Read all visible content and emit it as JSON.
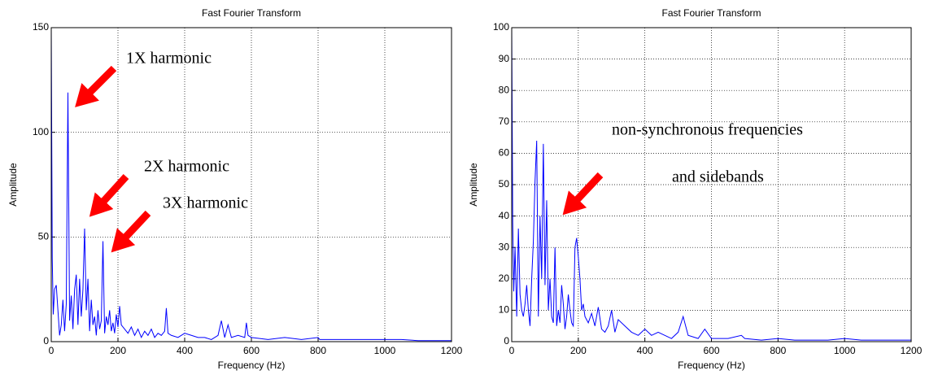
{
  "chart_data": [
    {
      "type": "line",
      "title": "Fast Fourier Transform",
      "xlabel": "Frequency (Hz)",
      "ylabel": "Amplitude",
      "x": [
        0,
        3,
        6,
        10,
        15,
        20,
        25,
        30,
        35,
        40,
        45,
        50,
        55,
        60,
        65,
        70,
        75,
        80,
        85,
        90,
        95,
        100,
        105,
        110,
        115,
        120,
        125,
        130,
        135,
        140,
        145,
        150,
        155,
        160,
        165,
        170,
        175,
        180,
        185,
        190,
        195,
        200,
        205,
        210,
        220,
        230,
        240,
        250,
        260,
        270,
        280,
        290,
        300,
        310,
        320,
        330,
        340,
        345,
        350,
        360,
        380,
        400,
        420,
        440,
        460,
        480,
        500,
        510,
        520,
        530,
        540,
        560,
        580,
        585,
        590,
        600,
        650,
        700,
        750,
        800,
        805,
        850,
        900,
        950,
        1000,
        1050,
        1100,
        1150,
        1200
      ],
      "series": [
        {
          "color": "#0000ff",
          "values": [
            150,
            40,
            13,
            25,
            27,
            15,
            3,
            8,
            20,
            5,
            18,
            119,
            10,
            22,
            6,
            25,
            32,
            8,
            30,
            12,
            25,
            54,
            15,
            30,
            5,
            20,
            8,
            12,
            3,
            15,
            6,
            10,
            48,
            4,
            12,
            8,
            15,
            5,
            9,
            4,
            13,
            7,
            17,
            8,
            6,
            4,
            7,
            3,
            6,
            2,
            5,
            3,
            6,
            2,
            4,
            3,
            5,
            16,
            4,
            3,
            2,
            4,
            3,
            2,
            2,
            1,
            3,
            10,
            2,
            8,
            2,
            3,
            2,
            9,
            3,
            2,
            1,
            2,
            1,
            2,
            1,
            1,
            1,
            1,
            1,
            1,
            0.5,
            0.5,
            0.5
          ]
        }
      ],
      "xlim": [
        0,
        1200
      ],
      "xticks": [
        0,
        200,
        400,
        600,
        800,
        1000,
        1200
      ],
      "ylim": [
        0,
        150
      ],
      "yticks": [
        0,
        50,
        100,
        150
      ],
      "grid": true,
      "annotations": [
        "1X harmonic",
        "2X harmonic",
        "3X harmonic"
      ]
    },
    {
      "type": "line",
      "title": "Fast Fourier Transform",
      "xlabel": "Frequency (Hz)",
      "ylabel": "Amplitude",
      "x": [
        0,
        3,
        6,
        10,
        15,
        20,
        25,
        30,
        35,
        40,
        45,
        50,
        55,
        60,
        65,
        70,
        75,
        80,
        85,
        90,
        95,
        100,
        105,
        110,
        115,
        120,
        125,
        130,
        135,
        140,
        145,
        150,
        155,
        160,
        165,
        170,
        175,
        180,
        185,
        190,
        195,
        200,
        205,
        210,
        215,
        220,
        230,
        240,
        250,
        260,
        270,
        280,
        290,
        300,
        310,
        320,
        340,
        360,
        380,
        400,
        420,
        440,
        460,
        480,
        500,
        515,
        530,
        560,
        580,
        600,
        650,
        690,
        700,
        750,
        800,
        850,
        900,
        950,
        1000,
        1050,
        1100,
        1150,
        1200
      ],
      "series": [
        {
          "color": "#0000ff",
          "values": [
            100,
            38,
            16,
            30,
            8,
            36,
            15,
            10,
            8,
            12,
            18,
            10,
            5,
            20,
            32,
            51,
            64,
            8,
            40,
            20,
            63,
            18,
            45,
            10,
            20,
            8,
            6,
            30,
            5,
            10,
            6,
            18,
            12,
            4,
            8,
            15,
            10,
            6,
            5,
            30,
            33,
            27,
            20,
            10,
            12,
            8,
            6,
            9,
            5,
            11,
            4,
            3,
            5,
            10,
            3,
            7,
            5,
            3,
            2,
            4,
            2,
            3,
            2,
            1,
            3,
            8,
            2,
            1,
            4,
            1,
            1,
            2,
            1,
            0.5,
            1,
            0.5,
            0.5,
            0.5,
            1,
            0.5,
            0.5,
            0.5,
            0.5
          ]
        }
      ],
      "xlim": [
        0,
        1200
      ],
      "xticks": [
        0,
        200,
        400,
        600,
        800,
        1000,
        1200
      ],
      "ylim": [
        0,
        100
      ],
      "yticks": [
        0,
        10,
        20,
        30,
        40,
        50,
        60,
        70,
        80,
        90,
        100
      ],
      "grid": true,
      "annotations": [
        "non-synchronous frequencies",
        "and sidebands"
      ]
    }
  ]
}
